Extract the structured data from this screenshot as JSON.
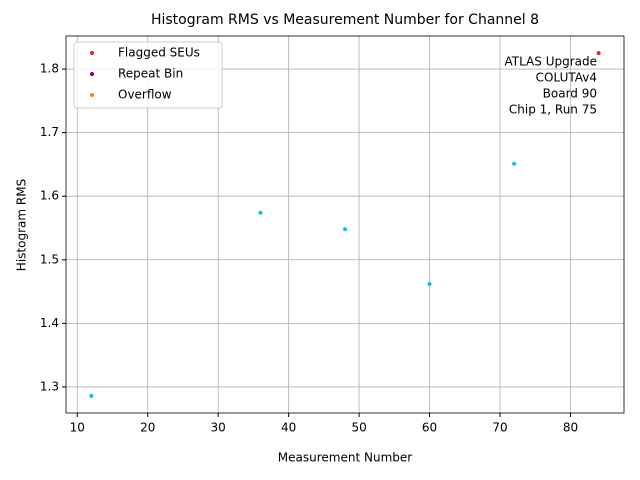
{
  "chart_data": {
    "type": "scatter",
    "title": "Histogram RMS vs Measurement Number for Channel 8",
    "x_label": "Measurement Number",
    "y_label": "Histogram RMS",
    "series": [
      {
        "color": "#17becf",
        "x": [
          12,
          36,
          48,
          60,
          72
        ],
        "values": [
          1.286,
          1.574,
          1.548,
          1.462,
          1.651
        ]
      },
      {
        "name": "Flagged SEUs",
        "color": "#d62728",
        "x": [
          84
        ],
        "values": [
          1.825
        ]
      },
      {
        "name": "Repeat Bin",
        "color": "#800080",
        "x": [],
        "values": []
      },
      {
        "name": "Overflow",
        "color": "#ff7f0e",
        "x": [],
        "values": []
      }
    ],
    "annotations": [
      "ATLAS Upgrade",
      "COLUTAv4",
      "Board 90",
      "Chip 1, Run 75"
    ],
    "xlim": [
      8.4,
      87.6
    ],
    "xticks": [
      10,
      20,
      30,
      40,
      50,
      60,
      70,
      80
    ],
    "ylim": [
      1.259,
      1.852
    ],
    "yticks": [
      {
        "value": 1.3,
        "label": "1.3"
      },
      {
        "value": 1.4,
        "label": "1.4"
      },
      {
        "value": 1.5,
        "label": "1.5"
      },
      {
        "value": 1.6,
        "label": "1.6"
      },
      {
        "value": 1.7,
        "label": "1.7"
      },
      {
        "value": 1.8,
        "label": "1.8"
      }
    ],
    "grid": true,
    "legend": "upper-left"
  }
}
